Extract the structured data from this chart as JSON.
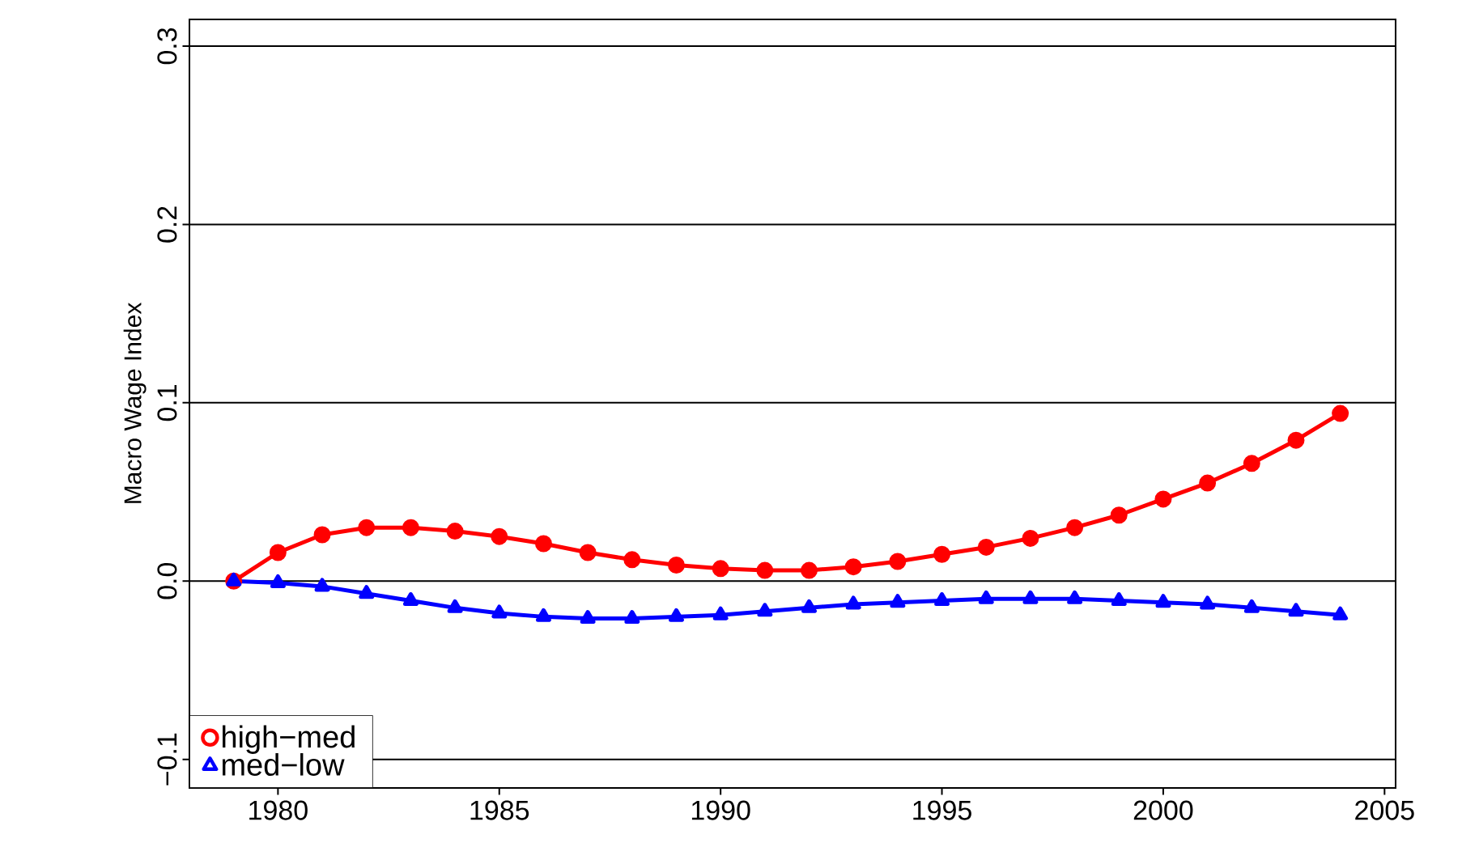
{
  "chart_data": {
    "type": "line",
    "ylabel": "Macro Wage Index",
    "x": [
      1979,
      1980,
      1981,
      1982,
      1983,
      1984,
      1985,
      1986,
      1987,
      1988,
      1989,
      1990,
      1991,
      1992,
      1993,
      1994,
      1995,
      1996,
      1997,
      1998,
      1999,
      2000,
      2001,
      2002,
      2003,
      2004
    ],
    "series": [
      {
        "name": "high−med",
        "color": "#ff0000",
        "marker": "circle",
        "values": [
          0,
          0.016,
          0.026,
          0.03,
          0.03,
          0.028,
          0.025,
          0.021,
          0.016,
          0.012,
          0.009,
          0.007,
          0.006,
          0.006,
          0.008,
          0.011,
          0.015,
          0.019,
          0.024,
          0.03,
          0.037,
          0.046,
          0.055,
          0.066,
          0.079,
          0.094
        ]
      },
      {
        "name": "med−low",
        "color": "#0000ff",
        "marker": "triangle",
        "values": [
          0,
          -0.001,
          -0.003,
          -0.007,
          -0.011,
          -0.015,
          -0.018,
          -0.02,
          -0.021,
          -0.021,
          -0.02,
          -0.019,
          -0.017,
          -0.015,
          -0.013,
          -0.012,
          -0.011,
          -0.01,
          -0.01,
          -0.01,
          -0.011,
          -0.012,
          -0.013,
          -0.015,
          -0.017,
          -0.019
        ]
      }
    ],
    "xlim": [
      1978,
      2005.25
    ],
    "ylim": [
      -0.116,
      0.315
    ],
    "xticks": [
      1980,
      1985,
      1990,
      1995,
      2000,
      2005
    ],
    "yticks": [
      {
        "value": -0.1,
        "label": "−0.1"
      },
      {
        "value": 0,
        "label": "0.0"
      },
      0.1,
      0.2,
      0.3
    ],
    "grid": "y",
    "legend": "bottom left",
    "line_style": "solid"
  }
}
